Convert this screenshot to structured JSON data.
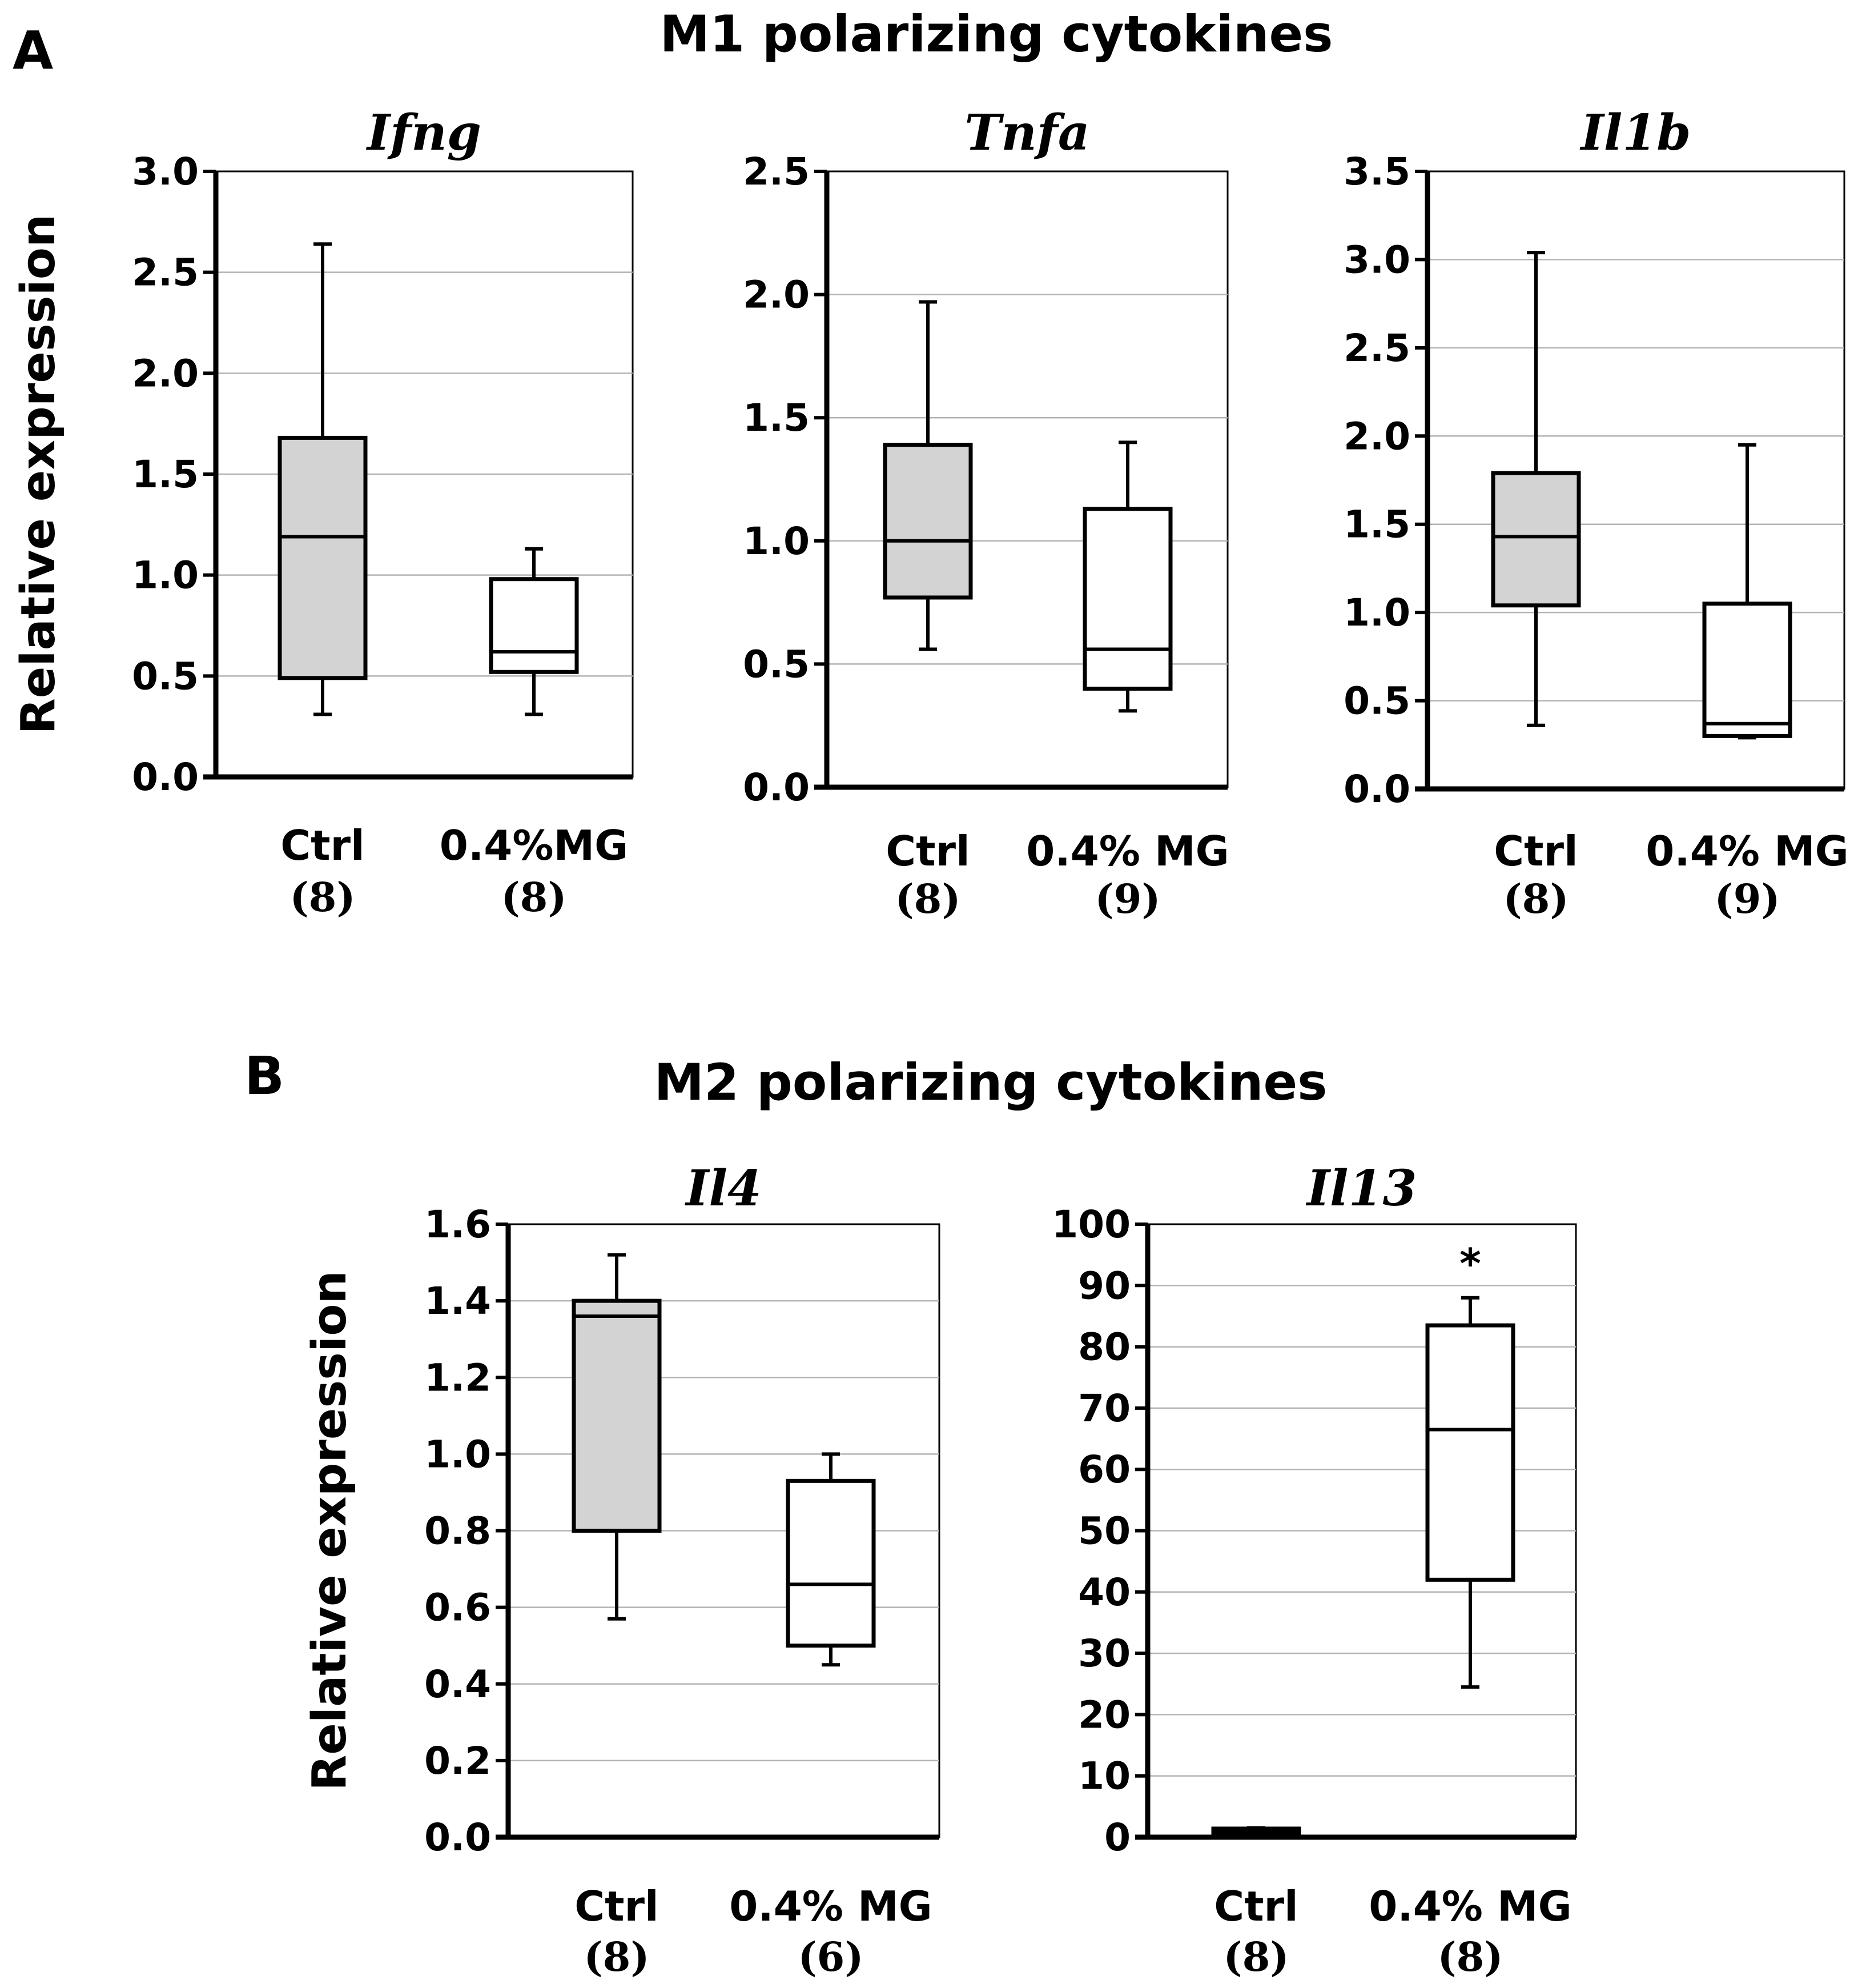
{
  "panels": {
    "A": {
      "letter": "A",
      "title": "M1 polarizing cytokines"
    },
    "B": {
      "letter": "B",
      "title": "M2 polarizing cytokines"
    }
  },
  "chart_data": [
    {
      "type": "box",
      "title": "Ifng",
      "ylabel": "Relative expression",
      "ylim": [
        0,
        3.0
      ],
      "yticks": [
        "0.0",
        "0.5",
        "1.0",
        "1.5",
        "2.0",
        "2.5",
        "3.0"
      ],
      "gridlines": true,
      "categories": [
        {
          "label": "Ctrl",
          "n": "(8)",
          "fill": "#d3d3d3",
          "min": 0.31,
          "q1": 0.49,
          "median": 1.19,
          "q3": 1.68,
          "max": 2.64
        },
        {
          "label": "0.4%MG",
          "n": "(8)",
          "fill": "#ffffff",
          "min": 0.31,
          "q1": 0.52,
          "median": 0.62,
          "q3": 0.98,
          "max": 1.13
        }
      ],
      "annotations": []
    },
    {
      "type": "box",
      "title": "Tnfa",
      "ylabel": "",
      "ylim": [
        0,
        2.5
      ],
      "yticks": [
        "0.0",
        "0.5",
        "1.0",
        "1.5",
        "2.0",
        "2.5"
      ],
      "gridlines": true,
      "categories": [
        {
          "label": "Ctrl",
          "n": "(8)",
          "fill": "#d3d3d3",
          "min": 0.56,
          "q1": 0.77,
          "median": 1.0,
          "q3": 1.39,
          "max": 1.97
        },
        {
          "label": "0.4% MG",
          "n": "(9)",
          "fill": "#ffffff",
          "min": 0.31,
          "q1": 0.4,
          "median": 0.56,
          "q3": 1.13,
          "max": 1.4
        }
      ],
      "annotations": []
    },
    {
      "type": "box",
      "title": "Il1b",
      "ylabel": "",
      "ylim": [
        0,
        3.5
      ],
      "yticks": [
        "0.0",
        "0.5",
        "1.0",
        "1.5",
        "2.0",
        "2.5",
        "3.0",
        "3.5"
      ],
      "gridlines": true,
      "categories": [
        {
          "label": "Ctrl",
          "n": "(8)",
          "fill": "#d3d3d3",
          "min": 0.36,
          "q1": 1.04,
          "median": 1.43,
          "q3": 1.79,
          "max": 3.04
        },
        {
          "label": "0.4% MG",
          "n": "(9)",
          "fill": "#ffffff",
          "min": 0.29,
          "q1": 0.3,
          "median": 0.37,
          "q3": 1.05,
          "max": 1.95
        }
      ],
      "annotations": []
    },
    {
      "type": "box",
      "title": "Il4",
      "ylabel": "Relative expression",
      "ylim": [
        0,
        1.6
      ],
      "yticks": [
        "0.0",
        "0.2",
        "0.4",
        "0.6",
        "0.8",
        "1.0",
        "1.2",
        "1.4",
        "1.6"
      ],
      "gridlines": true,
      "categories": [
        {
          "label": "Ctrl",
          "n": "(8)",
          "fill": "#d3d3d3",
          "min": 0.57,
          "q1": 0.8,
          "median": 1.36,
          "q3": 1.4,
          "max": 1.52
        },
        {
          "label": "0.4% MG",
          "n": "(6)",
          "fill": "#ffffff",
          "min": 0.45,
          "q1": 0.5,
          "median": 0.66,
          "q3": 0.93,
          "max": 1.0
        }
      ],
      "annotations": []
    },
    {
      "type": "box",
      "title": "Il13",
      "ylabel": "",
      "ylim": [
        0,
        100
      ],
      "yticks": [
        "0",
        "10",
        "20",
        "30",
        "40",
        "50",
        "60",
        "70",
        "80",
        "90",
        "100"
      ],
      "gridlines": true,
      "categories": [
        {
          "label": "Ctrl",
          "n": "(8)",
          "fill": "#d3d3d3",
          "min": 0.5,
          "q1": 0.6,
          "median": 1.0,
          "q3": 1.4,
          "max": 1.5
        },
        {
          "label": "0.4% MG",
          "n": "(8)",
          "fill": "#ffffff",
          "min": 24.5,
          "q1": 42.0,
          "median": 66.5,
          "q3": 83.5,
          "max": 88.0
        }
      ],
      "annotations": [
        {
          "category": 1,
          "text": "*"
        }
      ]
    }
  ]
}
